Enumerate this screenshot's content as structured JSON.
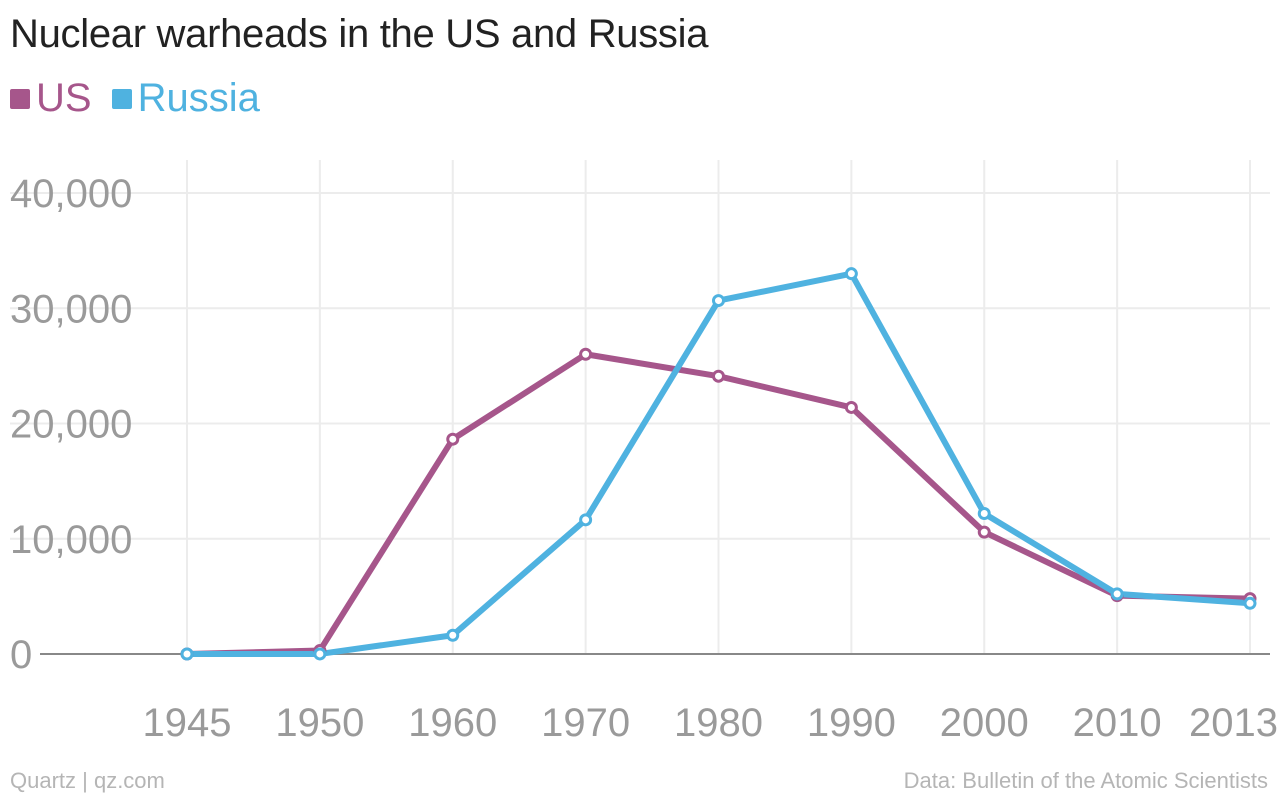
{
  "chart_data": {
    "type": "line",
    "title": "Nuclear warheads in the US and Russia",
    "categories": [
      "1945",
      "1950",
      "1960",
      "1970",
      "1980",
      "1990",
      "2000",
      "2010",
      "2013"
    ],
    "series": [
      {
        "name": "US",
        "color": "#a6568b",
        "values": [
          2,
          299,
          18638,
          26008,
          24104,
          21392,
          10577,
          5066,
          4804
        ]
      },
      {
        "name": "Russia",
        "color": "#4fb2e0",
        "values": [
          0,
          5,
          1627,
          11643,
          30665,
          33000,
          12188,
          5215,
          4400
        ]
      }
    ],
    "xlabel": "",
    "ylabel": "",
    "ylim": [
      0,
      40000
    ],
    "yticks": [
      "0",
      "10,000",
      "20,000",
      "30,000",
      "40,000"
    ],
    "grid": true,
    "legend": "top-left"
  },
  "footer": {
    "source_left": "Quartz | qz.com",
    "source_right": "Data: Bulletin of the Atomic Scientists"
  }
}
